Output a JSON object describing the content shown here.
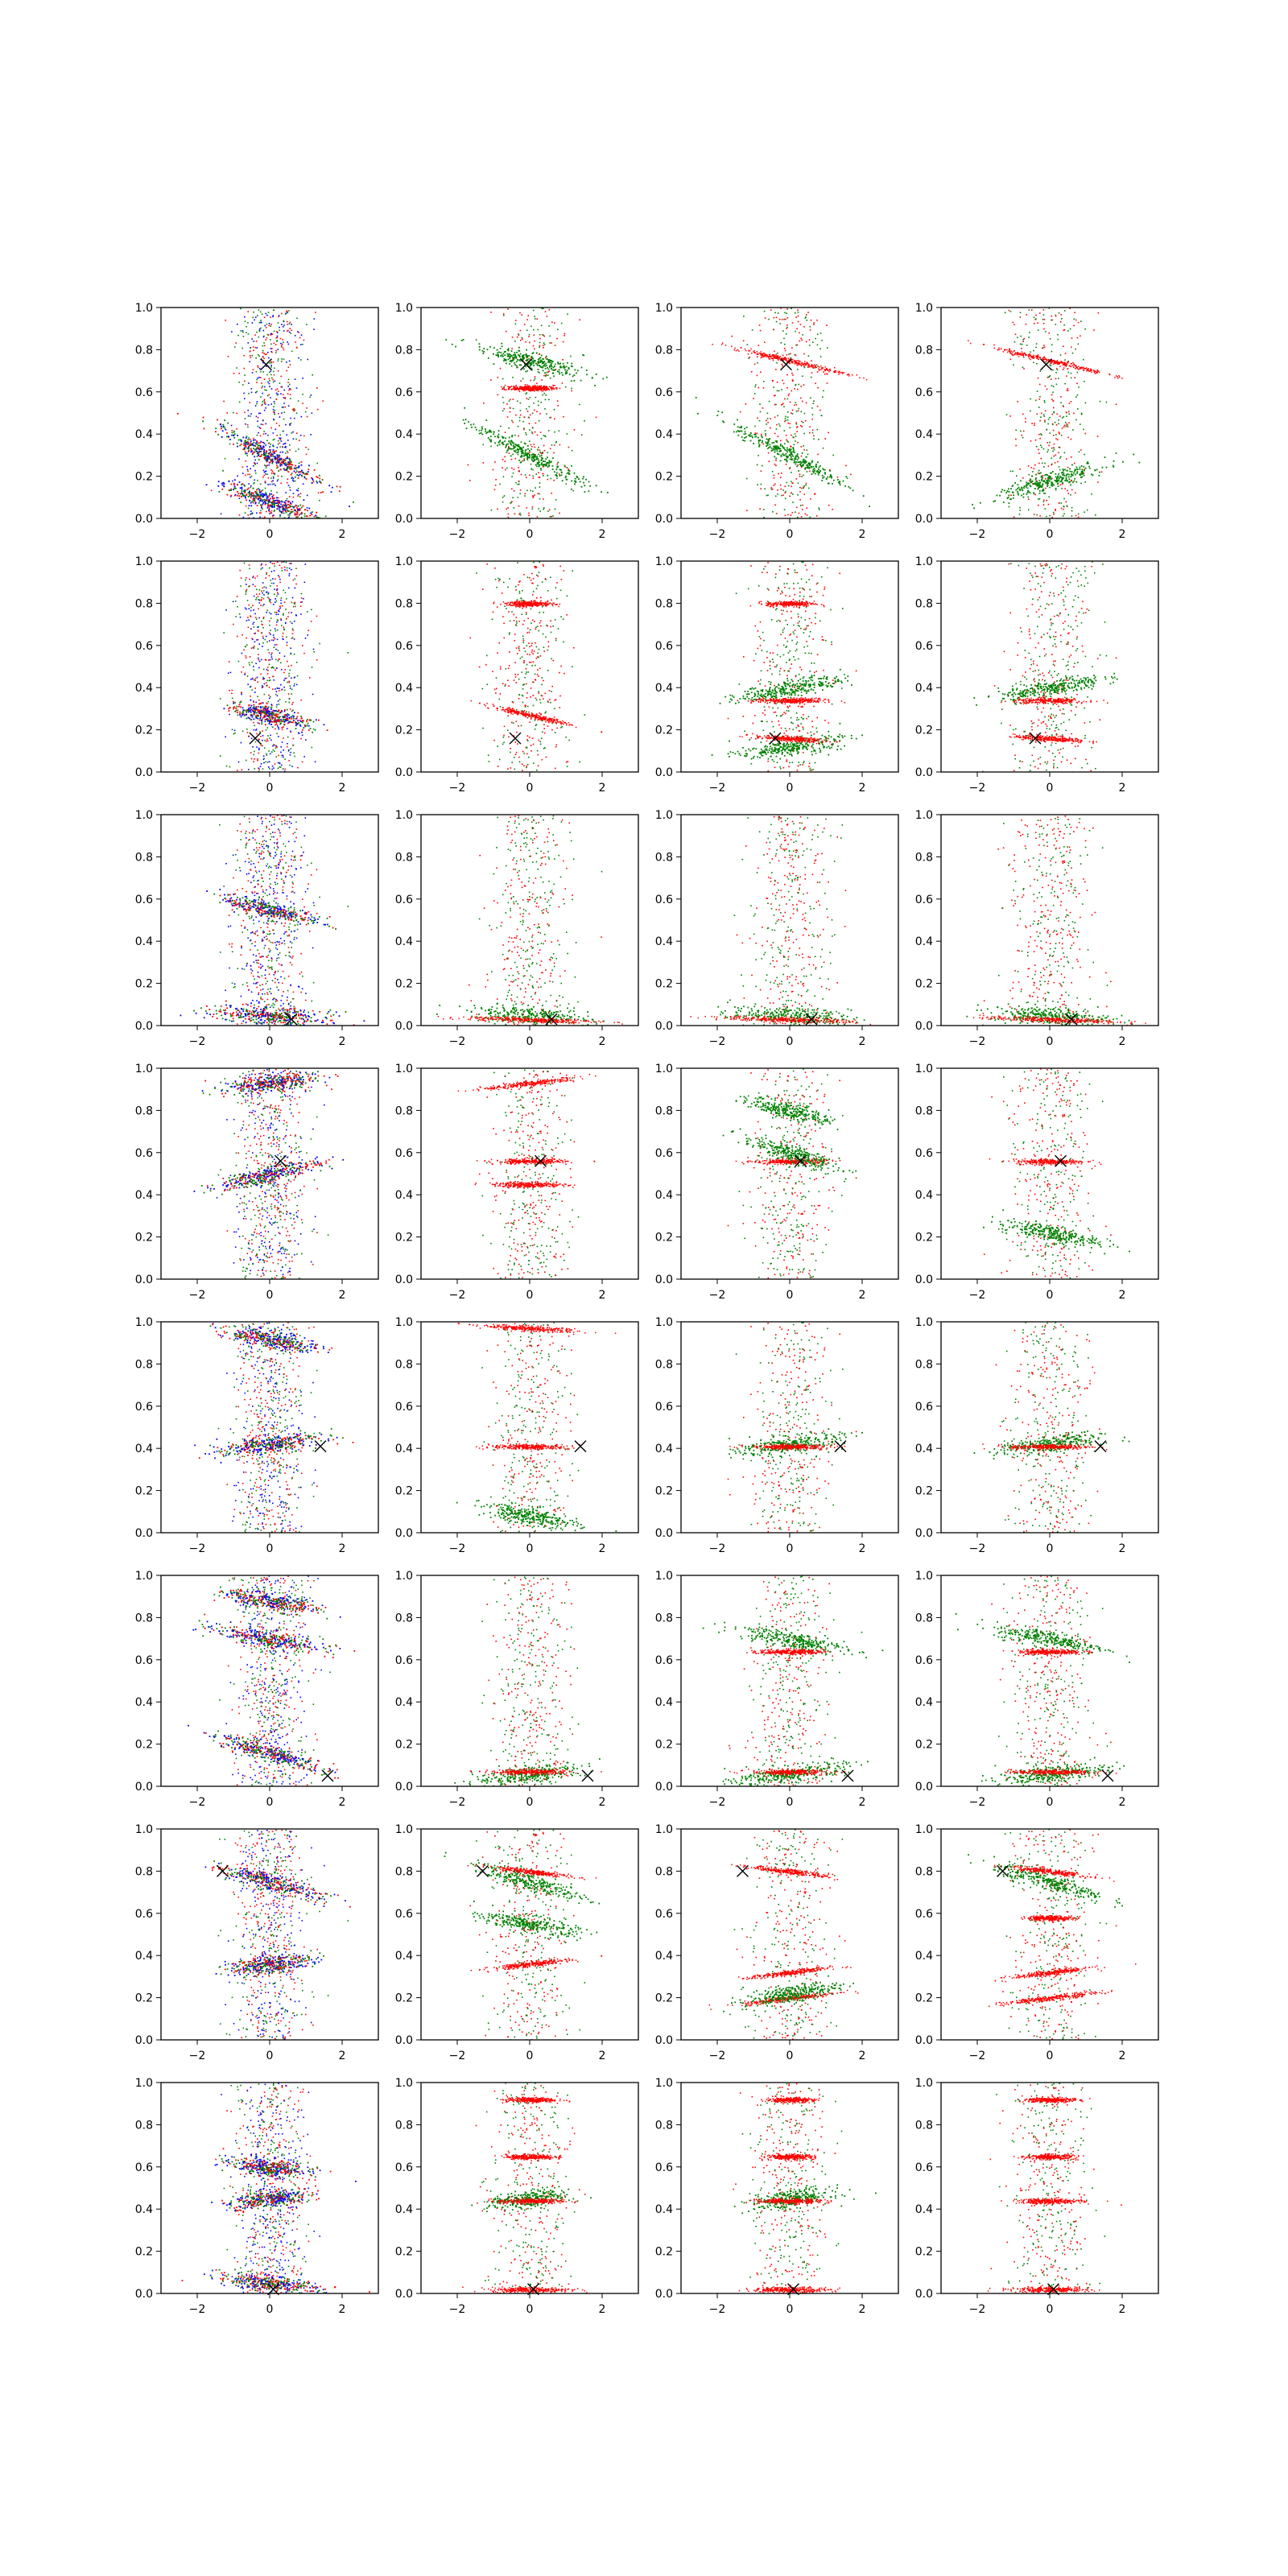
{
  "chart_data": {
    "type": "scatter",
    "layout": {
      "rows": 8,
      "cols": 4
    },
    "xlim": [
      -3,
      3
    ],
    "ylim": [
      0,
      1
    ],
    "xticks": [
      -2,
      0,
      2
    ],
    "yticks": [
      0.0,
      0.2,
      0.4,
      0.6,
      0.8,
      1.0
    ],
    "xtick_labels": [
      "−2",
      "0",
      "2"
    ],
    "ytick_labels": [
      "0.0",
      "0.2",
      "0.4",
      "0.6",
      "0.8",
      "1.0"
    ],
    "grid": false,
    "colors": {
      "red": "#ff0000",
      "green": "#008000",
      "blue": "#0000ff",
      "marker": "#000000"
    },
    "column_series": [
      [
        "red",
        "green",
        "blue"
      ],
      [
        "red",
        "green"
      ],
      [
        "red",
        "green"
      ],
      [
        "red",
        "green"
      ]
    ],
    "rows": [
      {
        "marker": {
          "x": -0.1,
          "y": 0.73
        },
        "bands": [
          {
            "y": 0.3,
            "slope": -0.09,
            "spread": 1.4,
            "cols": [
              "g",
              "g",
              "g",
              "s"
            ]
          },
          {
            "y": 0.08,
            "slope": -0.06,
            "spread": 1.2,
            "cols": [
              "g",
              "s",
              "s",
              "s"
            ]
          },
          {
            "y": 0.75,
            "slope": -0.04,
            "spread": 1.4,
            "cols": [
              "s",
              "g",
              "r",
              "r"
            ]
          },
          {
            "y": 0.18,
            "slope": 0.05,
            "spread": 1.4,
            "cols": [
              "s",
              "s",
              "s",
              "g"
            ]
          },
          {
            "y": 0.62,
            "slope": 0.0,
            "spread": 0.6,
            "cols": [
              "s",
              "r",
              "s",
              "s"
            ]
          }
        ]
      },
      {
        "marker": {
          "x": -0.4,
          "y": 0.16
        },
        "bands": [
          {
            "y": 0.27,
            "slope": -0.04,
            "spread": 1.0,
            "cols": [
              "g",
              "r",
              "s",
              "s"
            ]
          },
          {
            "y": 0.12,
            "slope": 0.02,
            "spread": 1.3,
            "cols": [
              "s",
              "s",
              "g",
              "s"
            ]
          },
          {
            "y": 0.16,
            "slope": -0.01,
            "spread": 0.9,
            "cols": [
              "s",
              "s",
              "r",
              "r"
            ]
          },
          {
            "y": 0.4,
            "slope": 0.03,
            "spread": 1.3,
            "cols": [
              "s",
              "s",
              "g",
              "g"
            ]
          },
          {
            "y": 0.34,
            "slope": 0.0,
            "spread": 0.9,
            "cols": [
              "s",
              "s",
              "r",
              "r"
            ]
          },
          {
            "y": 0.8,
            "slope": 0.0,
            "spread": 0.6,
            "cols": [
              "s",
              "r",
              "r",
              "s"
            ]
          }
        ]
      },
      {
        "marker": {
          "x": 0.6,
          "y": 0.03
        },
        "bands": [
          {
            "y": 0.05,
            "slope": -0.01,
            "spread": 1.5,
            "cols": [
              "g",
              "g",
              "g",
              "g"
            ]
          },
          {
            "y": 0.03,
            "slope": -0.005,
            "spread": 1.7,
            "cols": [
              "s",
              "r",
              "r",
              "r"
            ]
          },
          {
            "y": 0.55,
            "slope": -0.04,
            "spread": 1.2,
            "cols": [
              "g",
              "s",
              "s",
              "s"
            ]
          }
        ]
      },
      {
        "marker": {
          "x": 0.3,
          "y": 0.56
        },
        "bands": [
          {
            "y": 0.93,
            "slope": 0.02,
            "spread": 1.2,
            "cols": [
              "g",
              "r",
              "s",
              "s"
            ]
          },
          {
            "y": 0.5,
            "slope": 0.04,
            "spread": 1.3,
            "cols": [
              "g",
              "s",
              "s",
              "s"
            ]
          },
          {
            "y": 0.56,
            "slope": 0.0,
            "spread": 0.9,
            "cols": [
              "s",
              "r",
              "r",
              "r"
            ]
          },
          {
            "y": 0.45,
            "slope": 0.0,
            "spread": 0.9,
            "cols": [
              "s",
              "r",
              "s",
              "s"
            ]
          },
          {
            "y": 0.6,
            "slope": -0.05,
            "spread": 1.2,
            "cols": [
              "s",
              "s",
              "g",
              "s"
            ]
          },
          {
            "y": 0.8,
            "slope": -0.04,
            "spread": 1.0,
            "cols": [
              "s",
              "s",
              "g",
              "s"
            ]
          },
          {
            "y": 0.22,
            "slope": -0.03,
            "spread": 1.2,
            "cols": [
              "s",
              "s",
              "s",
              "g"
            ]
          }
        ]
      },
      {
        "marker": {
          "x": 1.4,
          "y": 0.41
        },
        "bands": [
          {
            "y": 0.42,
            "slope": 0.02,
            "spread": 1.3,
            "cols": [
              "g",
              "s",
              "g",
              "g"
            ]
          },
          {
            "y": 0.41,
            "slope": 0.0,
            "spread": 1.0,
            "cols": [
              "s",
              "r",
              "r",
              "r"
            ]
          },
          {
            "y": 0.92,
            "slope": -0.03,
            "spread": 1.2,
            "cols": [
              "g",
              "s",
              "s",
              "s"
            ]
          },
          {
            "y": 0.97,
            "slope": -0.01,
            "spread": 1.2,
            "cols": [
              "s",
              "r",
              "s",
              "s"
            ]
          },
          {
            "y": 0.08,
            "slope": -0.03,
            "spread": 1.2,
            "cols": [
              "s",
              "g",
              "s",
              "s"
            ]
          }
        ]
      },
      {
        "marker": {
          "x": 1.6,
          "y": 0.05
        },
        "bands": [
          {
            "y": 0.16,
            "slope": -0.05,
            "spread": 1.4,
            "cols": [
              "g",
              "s",
              "s",
              "s"
            ]
          },
          {
            "y": 0.7,
            "slope": -0.03,
            "spread": 1.4,
            "cols": [
              "g",
              "s",
              "g",
              "g"
            ]
          },
          {
            "y": 0.88,
            "slope": -0.03,
            "spread": 1.2,
            "cols": [
              "g",
              "s",
              "s",
              "s"
            ]
          },
          {
            "y": 0.06,
            "slope": 0.02,
            "spread": 1.4,
            "cols": [
              "s",
              "g",
              "g",
              "g"
            ]
          },
          {
            "y": 0.07,
            "slope": 0.0,
            "spread": 1.0,
            "cols": [
              "s",
              "r",
              "r",
              "r"
            ]
          },
          {
            "y": 0.64,
            "slope": 0.0,
            "spread": 0.8,
            "cols": [
              "s",
              "s",
              "r",
              "r"
            ]
          }
        ]
      },
      {
        "marker": {
          "x": -1.3,
          "y": 0.8
        },
        "bands": [
          {
            "y": 0.36,
            "slope": 0.02,
            "spread": 1.0,
            "cols": [
              "g",
              "r",
              "s",
              "s"
            ]
          },
          {
            "y": 0.75,
            "slope": -0.05,
            "spread": 1.4,
            "cols": [
              "g",
              "g",
              "s",
              "g"
            ]
          },
          {
            "y": 0.8,
            "slope": -0.02,
            "spread": 1.0,
            "cols": [
              "s",
              "r",
              "r",
              "r"
            ]
          },
          {
            "y": 0.55,
            "slope": -0.03,
            "spread": 1.2,
            "cols": [
              "s",
              "g",
              "s",
              "s"
            ]
          },
          {
            "y": 0.32,
            "slope": 0.02,
            "spread": 1.0,
            "cols": [
              "s",
              "s",
              "r",
              "r"
            ]
          },
          {
            "y": 0.2,
            "slope": 0.02,
            "spread": 1.2,
            "cols": [
              "s",
              "s",
              "r",
              "r"
            ]
          },
          {
            "y": 0.22,
            "slope": 0.03,
            "spread": 1.2,
            "cols": [
              "s",
              "s",
              "g",
              "s"
            ]
          },
          {
            "y": 0.58,
            "slope": 0.0,
            "spread": 0.6,
            "cols": [
              "s",
              "s",
              "s",
              "r"
            ]
          }
        ]
      },
      {
        "marker": {
          "x": 0.1,
          "y": 0.02
        },
        "bands": [
          {
            "y": 0.05,
            "slope": -0.02,
            "spread": 1.3,
            "cols": [
              "g",
              "s",
              "s",
              "s"
            ]
          },
          {
            "y": 0.45,
            "slope": 0.02,
            "spread": 1.0,
            "cols": [
              "g",
              "g",
              "g",
              "s"
            ]
          },
          {
            "y": 0.6,
            "slope": -0.02,
            "spread": 1.0,
            "cols": [
              "g",
              "s",
              "s",
              "s"
            ]
          },
          {
            "y": 0.44,
            "slope": 0.0,
            "spread": 0.8,
            "cols": [
              "s",
              "r",
              "r",
              "r"
            ]
          },
          {
            "y": 0.02,
            "slope": 0.0,
            "spread": 1.0,
            "cols": [
              "s",
              "r",
              "r",
              "r"
            ]
          },
          {
            "y": 0.92,
            "slope": 0.0,
            "spread": 0.6,
            "cols": [
              "s",
              "r",
              "r",
              "r"
            ]
          },
          {
            "y": 0.65,
            "slope": 0.0,
            "spread": 0.6,
            "cols": [
              "s",
              "r",
              "r",
              "r"
            ]
          }
        ]
      }
    ]
  }
}
